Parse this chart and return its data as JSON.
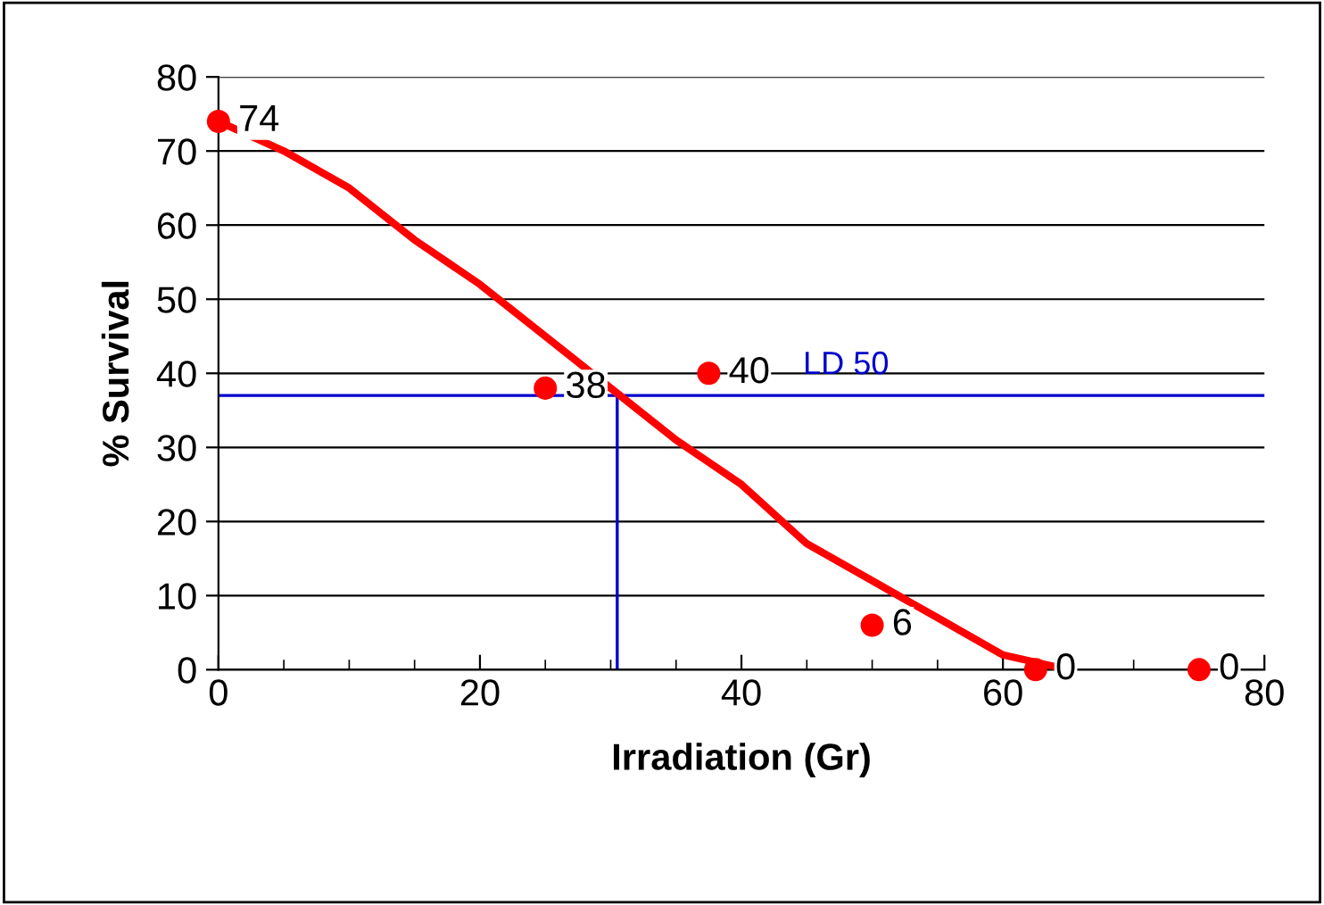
{
  "chart_data": {
    "type": "scatter",
    "xlabel": "Irradiation (Gr)",
    "ylabel": "% Survival",
    "xlim": [
      0,
      80
    ],
    "xticks": [
      0,
      20,
      40,
      60,
      80
    ],
    "ylim": [
      0,
      80
    ],
    "yticks": [
      0,
      10,
      20,
      30,
      40,
      50,
      60,
      70,
      80
    ],
    "grid": "y",
    "marker": "circle",
    "series": [
      {
        "type": "line",
        "marker": "none",
        "color": "#ff0000",
        "x": [
          0,
          5,
          10,
          15,
          20,
          25,
          30,
          35,
          40,
          45,
          50,
          55,
          60,
          65
        ],
        "values": [
          74,
          70,
          65,
          58,
          52,
          45,
          38,
          31,
          25,
          17,
          12,
          7,
          2,
          0
        ]
      },
      {
        "color": "#ff0000",
        "x": [
          0,
          25,
          37.5,
          50,
          62.5,
          75
        ],
        "values": [
          74,
          38,
          40,
          6,
          0,
          0
        ],
        "data_labels": true
      }
    ],
    "ref_lines": [
      {
        "axis": "y",
        "value": 37,
        "label": "LD 50",
        "color": "#0000cc"
      },
      {
        "axis": "x",
        "value": 30.5,
        "color": "#0000cc"
      }
    ]
  }
}
